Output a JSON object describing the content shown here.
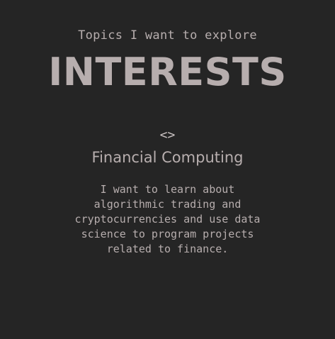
{
  "interests": {
    "subtitle": "Topics I want to explore",
    "title": "INTERESTS",
    "icon": "code-icon",
    "icon_glyph": "<>",
    "card": {
      "title": "Financial Computing",
      "description": "I want to learn about algorithmic trading and cryptocurrencies and use data science to program projects related to finance."
    }
  }
}
